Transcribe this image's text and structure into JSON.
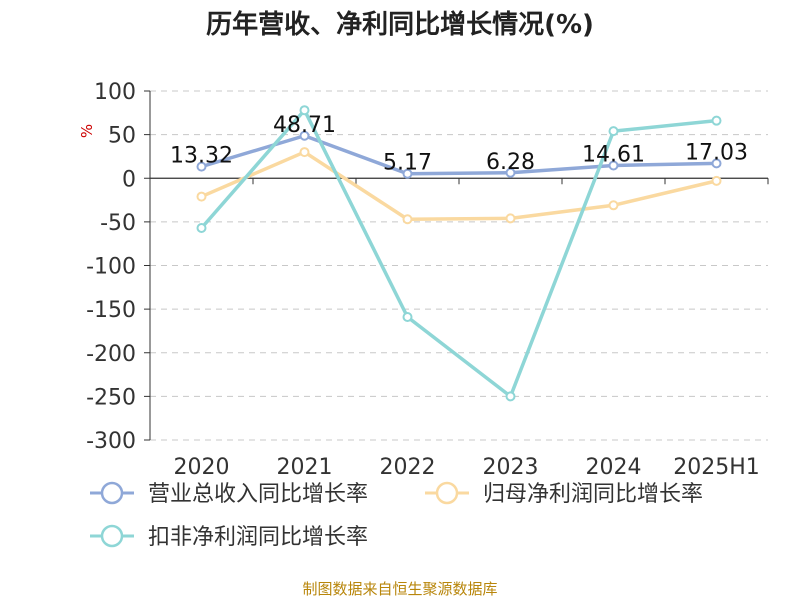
{
  "chart_data": {
    "type": "line",
    "title": "历年营收、净利同比增长情况(%)",
    "ylabel": "%",
    "categories": [
      "2020",
      "2021",
      "2022",
      "2023",
      "2024",
      "2025H1"
    ],
    "ylim": [
      -300,
      100
    ],
    "yticks": [
      100,
      50,
      0,
      -50,
      -100,
      -150,
      -200,
      -250,
      -300
    ],
    "grid": true,
    "legend_position": "bottom",
    "series": [
      {
        "name": "营业总收入同比增长率",
        "color": "#8fa8d8",
        "values": [
          13.32,
          48.71,
          5.17,
          6.28,
          14.61,
          17.03
        ],
        "labels": [
          "13.32",
          "48.71",
          "5.17",
          "6.28",
          "14.61",
          "17.03"
        ]
      },
      {
        "name": "归母净利润同比增长率",
        "color": "#fad9a0",
        "values": [
          -21,
          30,
          -47,
          -46,
          -31,
          -3
        ]
      },
      {
        "name": "扣非净利润同比增长率",
        "color": "#8ed6d6",
        "values": [
          -57,
          78,
          -159,
          -250,
          54,
          66
        ]
      }
    ]
  },
  "footer": {
    "source": "制图数据来自恒生聚源数据库"
  }
}
